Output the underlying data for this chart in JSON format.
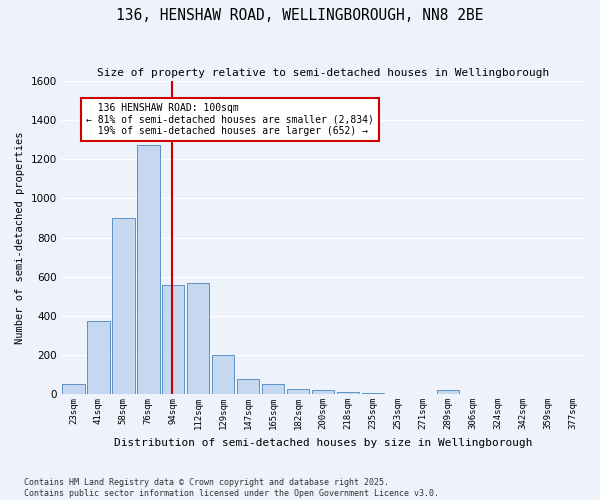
{
  "title": "136, HENSHAW ROAD, WELLINGBOROUGH, NN8 2BE",
  "subtitle": "Size of property relative to semi-detached houses in Wellingborough",
  "xlabel": "Distribution of semi-detached houses by size in Wellingborough",
  "ylabel": "Number of semi-detached properties",
  "categories": [
    "23sqm",
    "41sqm",
    "58sqm",
    "76sqm",
    "94sqm",
    "112sqm",
    "129sqm",
    "147sqm",
    "165sqm",
    "182sqm",
    "200sqm",
    "218sqm",
    "235sqm",
    "253sqm",
    "271sqm",
    "289sqm",
    "306sqm",
    "324sqm",
    "342sqm",
    "359sqm",
    "377sqm"
  ],
  "values": [
    50,
    375,
    900,
    1275,
    560,
    570,
    200,
    75,
    50,
    25,
    20,
    10,
    5,
    0,
    0,
    20,
    0,
    0,
    0,
    0,
    0
  ],
  "property_size_sqm": 100,
  "property_bin_index": 4,
  "pct_smaller": 81,
  "n_smaller": 2834,
  "pct_larger": 19,
  "n_larger": 652,
  "bar_color": "#c5d8f0",
  "bar_edge_color": "#5a92c8",
  "property_line_color": "#cc0000",
  "annotation_box_color": "#cc0000",
  "background_color": "#eef2fb",
  "ylim": [
    0,
    1600
  ],
  "yticks": [
    0,
    200,
    400,
    600,
    800,
    1000,
    1200,
    1400,
    1600
  ],
  "footnote1": "Contains HM Land Registry data © Crown copyright and database right 2025.",
  "footnote2": "Contains public sector information licensed under the Open Government Licence v3.0."
}
